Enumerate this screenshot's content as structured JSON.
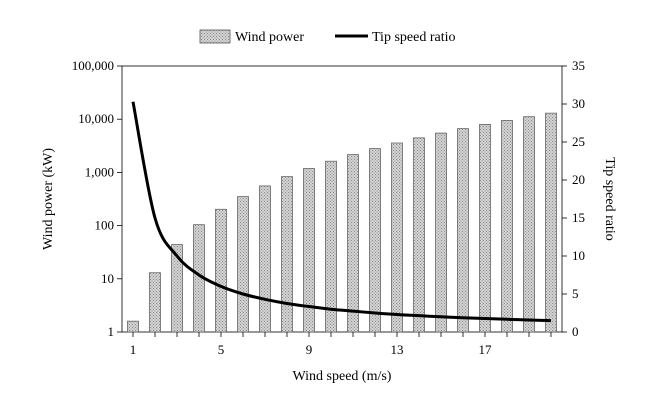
{
  "chart_data": {
    "type": "bar",
    "x": [
      1,
      2,
      3,
      4,
      5,
      6,
      7,
      8,
      9,
      10,
      11,
      12,
      13,
      14,
      15,
      16,
      17,
      18,
      19,
      20
    ],
    "x_tick_labels": [
      "1",
      "5",
      "9",
      "13",
      "17"
    ],
    "x_tick_values": [
      1,
      5,
      9,
      13,
      17
    ],
    "xlabel": "Wind speed (m/s)",
    "ylabel": "Wind power (kW)",
    "y2label": "Tip speed ratio",
    "y_scale": "log",
    "ylim": [
      1,
      100000
    ],
    "y_tick_values": [
      1,
      10,
      100,
      1000,
      10000,
      100000
    ],
    "y_tick_labels": [
      "1",
      "10",
      "100",
      "1,000",
      "10,000",
      "100,000"
    ],
    "y2lim": [
      0,
      35
    ],
    "y2_tick_values": [
      0,
      5,
      10,
      15,
      20,
      25,
      30,
      35
    ],
    "y2_tick_labels": [
      "0",
      "5",
      "10",
      "15",
      "20",
      "25",
      "30",
      "35"
    ],
    "grid": false,
    "legend_position": "top-center",
    "series": [
      {
        "name": "Wind power",
        "type": "bar",
        "axis": "left",
        "color": "#c8c8c8",
        "values": [
          1.6,
          13,
          44,
          104,
          203,
          351,
          557,
          832,
          1185,
          1625,
          2163,
          2808,
          3570,
          4459,
          5485,
          6656,
          7983,
          9476,
          11145,
          13000
        ]
      },
      {
        "name": "Tip speed ratio",
        "type": "line",
        "axis": "right",
        "color": "#000000",
        "values": [
          30.3,
          15.0,
          10.0,
          7.5,
          6.0,
          5.0,
          4.3,
          3.75,
          3.35,
          3.0,
          2.75,
          2.5,
          2.3,
          2.15,
          2.0,
          1.88,
          1.77,
          1.67,
          1.58,
          1.5
        ]
      }
    ]
  }
}
